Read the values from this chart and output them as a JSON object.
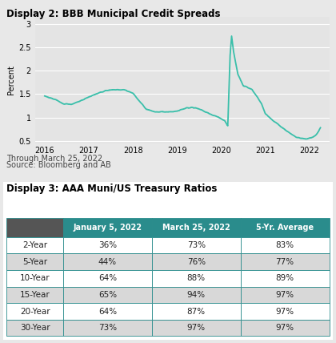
{
  "title1": "Display 2: BBB Municipal Credit Spreads",
  "title2": "Display 3: AAA Muni/US Treasury Ratios",
  "footnote_line1": "Through March 25, 2022",
  "footnote_line2": "Source: Bloomberg and AB",
  "line_color": "#3abfaa",
  "bg_color_top": "#e8e8e8",
  "bg_color_bottom": "#f0f0f0",
  "plot_bg_color": "#e4e4e4",
  "ylabel": "Percent",
  "yticks": [
    0.5,
    1.0,
    1.5,
    2.0,
    2.5,
    3.0
  ],
  "xtick_labels": [
    "2016",
    "2017",
    "2018",
    "2019",
    "2020",
    "2021",
    "2022"
  ],
  "ylim": [
    0.45,
    3.15
  ],
  "table_header_color": "#2a8c8c",
  "table_header_text_color": "#ffffff",
  "table_odd_row_color": "#ffffff",
  "table_even_row_color": "#d8d8d8",
  "table_border_color": "#2a8c8c",
  "table_headers": [
    "",
    "January 5, 2022",
    "March 25, 2022",
    "5-Yr. Average"
  ],
  "table_rows": [
    [
      "2-Year",
      "36%",
      "73%",
      "83%"
    ],
    [
      "5-Year",
      "44%",
      "76%",
      "77%"
    ],
    [
      "10-Year",
      "64%",
      "88%",
      "89%"
    ],
    [
      "15-Year",
      "65%",
      "94%",
      "97%"
    ],
    [
      "20-Year",
      "64%",
      "87%",
      "97%"
    ],
    [
      "30-Year",
      "73%",
      "97%",
      "97%"
    ]
  ],
  "keypoints": [
    [
      2016.0,
      1.46
    ],
    [
      2016.25,
      1.38
    ],
    [
      2016.4,
      1.3
    ],
    [
      2016.6,
      1.28
    ],
    [
      2016.8,
      1.35
    ],
    [
      2017.0,
      1.44
    ],
    [
      2017.2,
      1.52
    ],
    [
      2017.4,
      1.58
    ],
    [
      2017.6,
      1.6
    ],
    [
      2017.8,
      1.59
    ],
    [
      2018.0,
      1.52
    ],
    [
      2018.15,
      1.35
    ],
    [
      2018.3,
      1.18
    ],
    [
      2018.5,
      1.12
    ],
    [
      2018.7,
      1.12
    ],
    [
      2018.9,
      1.12
    ],
    [
      2019.0,
      1.13
    ],
    [
      2019.2,
      1.2
    ],
    [
      2019.35,
      1.22
    ],
    [
      2019.5,
      1.18
    ],
    [
      2019.65,
      1.12
    ],
    [
      2019.8,
      1.05
    ],
    [
      2019.95,
      1.0
    ],
    [
      2020.08,
      0.93
    ],
    [
      2020.15,
      0.82
    ],
    [
      2020.2,
      2.3
    ],
    [
      2020.235,
      2.76
    ],
    [
      2020.28,
      2.42
    ],
    [
      2020.38,
      1.92
    ],
    [
      2020.5,
      1.68
    ],
    [
      2020.6,
      1.64
    ],
    [
      2020.7,
      1.6
    ],
    [
      2020.82,
      1.44
    ],
    [
      2020.92,
      1.28
    ],
    [
      2021.0,
      1.08
    ],
    [
      2021.12,
      0.98
    ],
    [
      2021.25,
      0.88
    ],
    [
      2021.42,
      0.76
    ],
    [
      2021.58,
      0.65
    ],
    [
      2021.7,
      0.58
    ],
    [
      2021.82,
      0.55
    ],
    [
      2021.92,
      0.54
    ],
    [
      2022.0,
      0.56
    ],
    [
      2022.08,
      0.58
    ],
    [
      2022.15,
      0.62
    ],
    [
      2022.22,
      0.73
    ],
    [
      2022.25,
      0.78
    ]
  ]
}
